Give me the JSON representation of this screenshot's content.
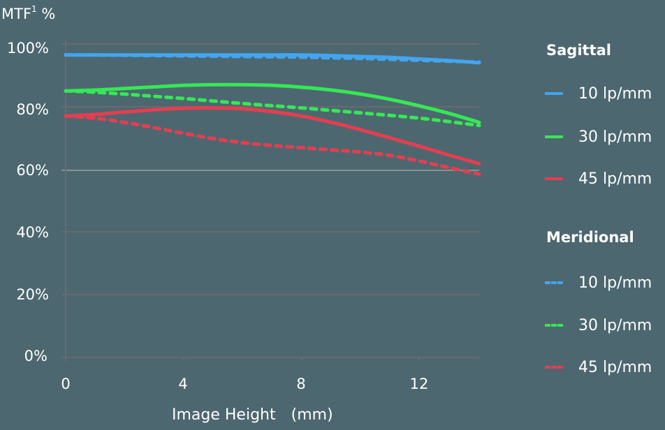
{
  "chart_data": {
    "type": "line",
    "title": "",
    "ylabel": "MTF1 %",
    "ylabel_main": "MTF",
    "ylabel_sup": "1",
    "ylabel_unit": "%",
    "xlabel": "Image Height (mm)",
    "xlim": [
      0,
      14
    ],
    "ylim": [
      0,
      100
    ],
    "x_ticks": [
      "0",
      "4",
      "8",
      "12"
    ],
    "y_ticks": [
      "0%",
      "20%",
      "40%",
      "60%",
      "80%",
      "100%"
    ],
    "grid": true,
    "legend_position": "right",
    "x": [
      0,
      1,
      2,
      3,
      4,
      5,
      6,
      7,
      8,
      9,
      10,
      11,
      12,
      13,
      14
    ],
    "series": [
      {
        "name": "Sagittal 10 lp/mm",
        "group": "Sagittal",
        "freq": "10 lp/mm",
        "style": "solid",
        "color": "#42a5f0",
        "values": [
          96.5,
          96.5,
          96.5,
          96.5,
          96.5,
          96.5,
          96.5,
          96.5,
          96.5,
          96.3,
          96.0,
          95.7,
          95.2,
          94.7,
          94.0
        ]
      },
      {
        "name": "Sagittal 30 lp/mm",
        "group": "Sagittal",
        "freq": "30 lp/mm",
        "style": "solid",
        "color": "#35e854",
        "values": [
          85.0,
          85.3,
          85.8,
          86.3,
          86.8,
          87.0,
          87.0,
          86.8,
          86.2,
          85.3,
          84.0,
          82.3,
          80.2,
          77.8,
          75.0
        ]
      },
      {
        "name": "Sagittal 45 lp/mm",
        "group": "Sagittal",
        "freq": "45 lp/mm",
        "style": "solid",
        "color": "#e53e4f",
        "values": [
          77.0,
          77.5,
          78.3,
          79.0,
          79.5,
          79.6,
          79.3,
          78.4,
          77.0,
          75.0,
          72.6,
          70.0,
          67.3,
          64.5,
          61.8
        ]
      },
      {
        "name": "Meridional 10 lp/mm",
        "group": "Meridional",
        "freq": "10 lp/mm",
        "style": "dashed",
        "color": "#42a5f0",
        "values": [
          96.5,
          96.5,
          96.4,
          96.3,
          96.2,
          96.1,
          96.0,
          95.9,
          95.8,
          95.6,
          95.4,
          95.1,
          94.8,
          94.5,
          94.2
        ]
      },
      {
        "name": "Meridional 30 lp/mm",
        "group": "Meridional",
        "freq": "30 lp/mm",
        "style": "dashed",
        "color": "#35e854",
        "values": [
          85.0,
          84.6,
          84.0,
          83.3,
          82.6,
          81.8,
          81.0,
          80.3,
          79.6,
          78.8,
          78.0,
          77.2,
          76.3,
          75.2,
          74.0
        ]
      },
      {
        "name": "Meridional 45 lp/mm",
        "group": "Meridional",
        "freq": "45 lp/mm",
        "style": "dashed",
        "color": "#e53e4f",
        "values": [
          77.0,
          76.3,
          75.0,
          73.3,
          71.5,
          69.8,
          68.5,
          67.6,
          66.9,
          66.2,
          65.5,
          64.4,
          62.6,
          60.5,
          58.5
        ]
      }
    ]
  },
  "axis": {
    "title_main": "MTF",
    "title_sup": "1",
    "title_unit": "%",
    "y_ticks": [
      "100%",
      "80%",
      "60%",
      "40%",
      "20%",
      "0%"
    ],
    "x_ticks": [
      "0",
      "4",
      "8",
      "12"
    ],
    "x_label": "Image Height (mm)"
  },
  "legend": {
    "sagittal": {
      "title": "Sagittal",
      "items": [
        {
          "label": "10 lp/mm",
          "color": "#42a5f0",
          "style": "solid"
        },
        {
          "label": "30 lp/mm",
          "color": "#35e854",
          "style": "solid"
        },
        {
          "label": "45 lp/mm",
          "color": "#e53e4f",
          "style": "solid"
        }
      ]
    },
    "meridional": {
      "title": "Meridional",
      "items": [
        {
          "label": "10 lp/mm",
          "color": "#42a5f0",
          "style": "dashed"
        },
        {
          "label": "30 lp/mm",
          "color": "#35e854",
          "style": "dashed"
        },
        {
          "label": "45 lp/mm",
          "color": "#e53e4f",
          "style": "dashed"
        }
      ]
    }
  },
  "colors": {
    "background": "#4d6770",
    "grid": "#6a6a6e",
    "grid_60": "#9aa098",
    "blue": "#42a5f0",
    "green": "#35e854",
    "red": "#e53e4f"
  }
}
